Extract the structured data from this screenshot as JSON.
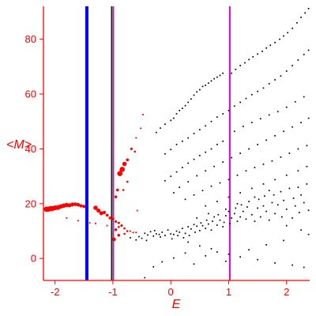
{
  "chart_data": {
    "type": "scatter",
    "title": "",
    "xlabel": "E",
    "ylabel": "<M>",
    "xlim": [
      -2.2,
      2.4
    ],
    "ylim": [
      -8,
      92
    ],
    "xticks": [
      -2,
      -1,
      0,
      1,
      2
    ],
    "yticks": [
      0,
      20,
      40,
      60,
      80
    ],
    "grid": false,
    "legend": "none",
    "colors": {
      "axis": "#ff0000",
      "text": "#ff0000",
      "background": "#ffffff",
      "points_black": "#000000",
      "points_red": "#ff0000",
      "line_blue": "#0000ff",
      "line_dark": "#202020",
      "line_magenta": "#e000e0"
    },
    "vertical_lines": [
      {
        "x": -1.45,
        "color": "#0000ff",
        "width": 4
      },
      {
        "x": -1.02,
        "color": "#202020",
        "width": 2
      },
      {
        "x": -0.99,
        "color": "#e000e0",
        "width": 1.5
      },
      {
        "x": 1.02,
        "color": "#e000e0",
        "width": 2
      }
    ],
    "red_points": [
      [
        -2.15,
        18,
        6
      ],
      [
        -2.12,
        18,
        6
      ],
      [
        -2.08,
        18.2,
        6
      ],
      [
        -2.05,
        18.2,
        6
      ],
      [
        -2.0,
        18.5,
        5.5
      ],
      [
        -1.95,
        18.6,
        5.5
      ],
      [
        -1.9,
        19,
        5
      ],
      [
        -1.85,
        19.3,
        5
      ],
      [
        -1.8,
        19.5,
        5
      ],
      [
        -1.75,
        19.4,
        4.5
      ],
      [
        -1.7,
        19.7,
        4.5
      ],
      [
        -1.65,
        19.8,
        4
      ],
      [
        -1.6,
        19.6,
        4
      ],
      [
        -1.55,
        19.2,
        3.5
      ],
      [
        -1.5,
        19.0,
        3.5
      ],
      [
        -1.3,
        18.5,
        5
      ],
      [
        -1.25,
        17.5,
        4.5
      ],
      [
        -1.2,
        16.5,
        4.5
      ],
      [
        -1.15,
        16.8,
        3.5
      ],
      [
        -1.1,
        15.8,
        3
      ],
      [
        -1.05,
        14.8,
        3
      ],
      [
        -1.0,
        14.5,
        3
      ],
      [
        -0.95,
        13.5,
        2.5
      ],
      [
        -0.9,
        13.0,
        2.5
      ],
      [
        -0.85,
        12.0,
        2.5
      ],
      [
        -0.8,
        11.0,
        2
      ],
      [
        -0.75,
        10.0,
        2
      ],
      [
        -0.7,
        10.0,
        1.5
      ],
      [
        -0.65,
        9.5,
        1.5
      ],
      [
        -0.6,
        9.5,
        1.5
      ],
      [
        -1.8,
        14.8,
        1.5
      ],
      [
        -1.6,
        13.8,
        1.5
      ],
      [
        -1.4,
        13.0,
        1.5
      ],
      [
        -1.3,
        12.8,
        1.5
      ],
      [
        -1.1,
        12.0,
        1.5
      ],
      [
        -0.95,
        10.5,
        3
      ],
      [
        -0.9,
        11.5,
        2
      ],
      [
        -0.8,
        9.0,
        2
      ],
      [
        -0.98,
        7.0,
        4
      ],
      [
        -0.9,
        8.5,
        3
      ],
      [
        -0.95,
        22.5,
        3
      ],
      [
        -0.92,
        25.0,
        3
      ],
      [
        -0.88,
        31.0,
        6
      ],
      [
        -0.84,
        32.5,
        6
      ],
      [
        -0.8,
        34.5,
        5
      ],
      [
        -0.75,
        36.0,
        3
      ],
      [
        -0.68,
        40.0,
        2.5
      ],
      [
        -0.62,
        39.0,
        2
      ],
      [
        -0.6,
        44.0,
        1.5
      ],
      [
        -0.52,
        47.5,
        1.5
      ],
      [
        -0.48,
        52.5,
        1.5
      ],
      [
        -0.82,
        25.0,
        2
      ],
      [
        -0.75,
        28.0,
        2
      ],
      [
        -0.58,
        17.5,
        1.5
      ]
    ],
    "black_points": [
      [
        -0.45,
        9.2
      ],
      [
        -0.4,
        8.6
      ],
      [
        -0.35,
        9.8
      ],
      [
        -0.3,
        8.2
      ],
      [
        -0.28,
        10.2
      ],
      [
        -0.25,
        9.0
      ],
      [
        -0.2,
        8.8
      ],
      [
        -0.18,
        7.9
      ],
      [
        -0.15,
        9.6
      ],
      [
        -0.1,
        8.4
      ],
      [
        -0.05,
        10.4
      ],
      [
        0.0,
        9.0
      ],
      [
        0.02,
        7.2
      ],
      [
        0.05,
        8.8
      ],
      [
        0.1,
        10.0
      ],
      [
        0.12,
        8.4
      ],
      [
        0.15,
        9.6
      ],
      [
        0.2,
        11.0
      ],
      [
        0.22,
        7.6
      ],
      [
        0.25,
        9.2
      ],
      [
        0.3,
        11.6
      ],
      [
        0.32,
        8.4
      ],
      [
        0.35,
        10.8
      ],
      [
        0.4,
        12.4
      ],
      [
        0.42,
        9.6
      ],
      [
        0.45,
        11.8
      ],
      [
        0.5,
        10.2
      ],
      [
        0.52,
        13.0
      ],
      [
        0.55,
        12.0
      ],
      [
        0.6,
        11.0
      ],
      [
        0.62,
        14.0
      ],
      [
        0.65,
        12.6
      ],
      [
        0.7,
        10.4
      ],
      [
        0.72,
        13.6
      ],
      [
        0.75,
        15.2
      ],
      [
        0.8,
        12.2
      ],
      [
        0.82,
        16.0
      ],
      [
        0.85,
        14.0
      ],
      [
        0.9,
        11.6
      ],
      [
        0.92,
        13.2
      ],
      [
        0.95,
        15.6
      ],
      [
        1.0,
        17.2
      ],
      [
        1.02,
        12.8
      ],
      [
        1.05,
        14.8
      ],
      [
        1.1,
        16.4
      ],
      [
        1.12,
        18.4
      ],
      [
        1.15,
        13.6
      ],
      [
        1.2,
        15.2
      ],
      [
        1.22,
        19.6
      ],
      [
        1.25,
        17.2
      ],
      [
        1.3,
        14.4
      ],
      [
        1.32,
        18.8
      ],
      [
        1.35,
        20.8
      ],
      [
        1.4,
        16.0
      ],
      [
        1.45,
        13.6
      ],
      [
        1.5,
        18.4
      ],
      [
        1.52,
        21.6
      ],
      [
        1.55,
        15.2
      ],
      [
        1.6,
        19.2
      ],
      [
        1.62,
        22.8
      ],
      [
        1.65,
        17.2
      ],
      [
        1.7,
        14.0
      ],
      [
        1.75,
        20.4
      ],
      [
        1.78,
        23.2
      ],
      [
        1.8,
        16.4
      ],
      [
        1.85,
        19.6
      ],
      [
        1.9,
        24.4
      ],
      [
        1.92,
        15.2
      ],
      [
        1.95,
        21.2
      ],
      [
        2.0,
        18.0
      ],
      [
        2.05,
        25.6
      ],
      [
        2.1,
        14.8
      ],
      [
        2.12,
        22.0
      ],
      [
        2.15,
        19.2
      ],
      [
        2.2,
        26.0
      ],
      [
        2.22,
        16.8
      ],
      [
        2.25,
        23.2
      ],
      [
        2.3,
        20.4
      ],
      [
        2.35,
        27.2
      ],
      [
        2.38,
        17.6
      ],
      [
        -0.6,
        6.8
      ],
      [
        -0.7,
        7.6
      ],
      [
        -0.55,
        8.0
      ],
      [
        -0.5,
        7.4
      ],
      [
        -0.42,
        6.6
      ],
      [
        -0.25,
        46.0
      ],
      [
        -0.18,
        47.6
      ],
      [
        -0.1,
        49.0
      ],
      [
        0.0,
        50.4
      ],
      [
        0.05,
        51.2
      ],
      [
        0.1,
        52.8
      ],
      [
        0.15,
        54.0
      ],
      [
        0.2,
        54.8
      ],
      [
        0.25,
        55.8
      ],
      [
        0.3,
        57.0
      ],
      [
        0.35,
        58.2
      ],
      [
        0.4,
        59.6
      ],
      [
        0.45,
        60.8
      ],
      [
        0.5,
        61.6
      ],
      [
        0.55,
        62.8
      ],
      [
        0.6,
        63.2
      ],
      [
        0.65,
        64.0
      ],
      [
        0.7,
        64.8
      ],
      [
        0.75,
        65.6
      ],
      [
        0.8,
        66.2
      ],
      [
        0.85,
        66.8
      ],
      [
        0.9,
        67.6
      ],
      [
        1.05,
        67.6
      ],
      [
        1.12,
        69.0
      ],
      [
        1.2,
        70.4
      ],
      [
        1.28,
        71.4
      ],
      [
        1.35,
        72.6
      ],
      [
        1.42,
        73.6
      ],
      [
        1.5,
        74.6
      ],
      [
        1.58,
        75.6
      ],
      [
        1.65,
        76.8
      ],
      [
        1.72,
        77.8
      ],
      [
        1.8,
        78.8
      ],
      [
        1.88,
        80.0
      ],
      [
        1.95,
        81.2
      ],
      [
        2.02,
        82.4
      ],
      [
        2.1,
        84.0
      ],
      [
        2.18,
        86.0
      ],
      [
        2.25,
        88.0
      ],
      [
        2.32,
        89.6
      ],
      [
        2.38,
        91.2
      ],
      [
        -0.1,
        38.2
      ],
      [
        0.0,
        39.8
      ],
      [
        0.1,
        41.6
      ],
      [
        0.2,
        42.8
      ],
      [
        0.3,
        44.0
      ],
      [
        0.4,
        45.6
      ],
      [
        0.5,
        47.0
      ],
      [
        0.6,
        48.4
      ],
      [
        0.7,
        50.0
      ],
      [
        0.8,
        51.6
      ],
      [
        0.9,
        52.8
      ],
      [
        1.0,
        54.0
      ],
      [
        1.1,
        55.6
      ],
      [
        1.2,
        57.0
      ],
      [
        1.3,
        58.4
      ],
      [
        1.4,
        59.8
      ],
      [
        1.5,
        61.0
      ],
      [
        1.6,
        62.2
      ],
      [
        1.7,
        63.8
      ],
      [
        1.8,
        65.2
      ],
      [
        1.9,
        66.6
      ],
      [
        2.0,
        68.4
      ],
      [
        2.1,
        70.4
      ],
      [
        2.2,
        72.4
      ],
      [
        2.3,
        74.4
      ],
      [
        2.38,
        76.0
      ],
      [
        -0.1,
        28.4
      ],
      [
        0.0,
        30.0
      ],
      [
        0.1,
        31.6
      ],
      [
        0.2,
        33.2
      ],
      [
        0.3,
        34.8
      ],
      [
        0.4,
        36.2
      ],
      [
        0.5,
        37.6
      ],
      [
        0.6,
        38.8
      ],
      [
        0.7,
        40.0
      ],
      [
        0.8,
        41.6
      ],
      [
        0.9,
        42.8
      ],
      [
        1.1,
        46.4
      ],
      [
        1.25,
        48.2
      ],
      [
        1.4,
        49.6
      ],
      [
        1.55,
        51.0
      ],
      [
        1.7,
        52.4
      ],
      [
        1.85,
        53.6
      ],
      [
        2.0,
        55.2
      ],
      [
        2.15,
        57.2
      ],
      [
        2.3,
        59.0
      ],
      [
        0.05,
        24.0
      ],
      [
        0.15,
        26.0
      ],
      [
        0.3,
        28.0
      ],
      [
        0.45,
        30.2
      ],
      [
        0.6,
        32.0
      ],
      [
        0.75,
        33.6
      ],
      [
        0.9,
        35.2
      ],
      [
        1.05,
        36.8
      ],
      [
        1.2,
        38.4
      ],
      [
        1.35,
        40.0
      ],
      [
        1.5,
        41.6
      ],
      [
        1.65,
        43.2
      ],
      [
        1.8,
        44.8
      ],
      [
        1.95,
        46.4
      ],
      [
        2.1,
        48.0
      ],
      [
        2.25,
        49.6
      ],
      [
        2.38,
        51.2
      ],
      [
        0.25,
        21.6
      ],
      [
        0.4,
        23.2
      ],
      [
        0.55,
        24.8
      ],
      [
        0.7,
        26.4
      ],
      [
        0.85,
        27.6
      ],
      [
        1.0,
        28.8
      ],
      [
        1.15,
        30.4
      ],
      [
        1.3,
        32.0
      ],
      [
        1.45,
        33.2
      ],
      [
        1.6,
        34.4
      ],
      [
        1.75,
        35.6
      ],
      [
        1.9,
        37.0
      ],
      [
        2.05,
        38.4
      ],
      [
        2.2,
        40.0
      ],
      [
        2.35,
        41.2
      ],
      [
        0.6,
        19.2
      ],
      [
        0.8,
        20.8
      ],
      [
        1.0,
        22.4
      ],
      [
        1.2,
        24.0
      ],
      [
        1.4,
        25.6
      ],
      [
        1.6,
        27.2
      ],
      [
        1.8,
        28.8
      ],
      [
        2.0,
        30.4
      ],
      [
        2.2,
        32.0
      ],
      [
        2.35,
        33.6
      ],
      [
        0.3,
        6.0
      ],
      [
        0.5,
        4.6
      ],
      [
        0.7,
        3.6
      ],
      [
        0.8,
        2.4
      ],
      [
        1.0,
        1.6
      ],
      [
        1.2,
        0.6
      ],
      [
        1.5,
        -0.4
      ],
      [
        1.8,
        -1.6
      ],
      [
        2.1,
        -2.4
      ],
      [
        2.3,
        -3.2
      ],
      [
        -0.3,
        -3.0
      ],
      [
        -0.15,
        -1.2
      ],
      [
        0.05,
        0.2
      ],
      [
        0.25,
        2.0
      ],
      [
        0.6,
        1.0
      ],
      [
        0.95,
        -1.0
      ],
      [
        0.4,
        -2.0
      ],
      [
        1.35,
        3.2
      ],
      [
        1.65,
        5.0
      ],
      [
        1.95,
        6.6
      ],
      [
        -0.45,
        -7.0
      ],
      [
        0.45,
        14.8
      ],
      [
        0.65,
        16.4
      ],
      [
        0.95,
        18.0
      ],
      [
        1.15,
        20.0
      ],
      [
        1.45,
        22.4
      ],
      [
        1.7,
        24.8
      ],
      [
        2.0,
        12.0
      ],
      [
        2.25,
        10.4
      ],
      [
        2.38,
        8.8
      ]
    ]
  }
}
